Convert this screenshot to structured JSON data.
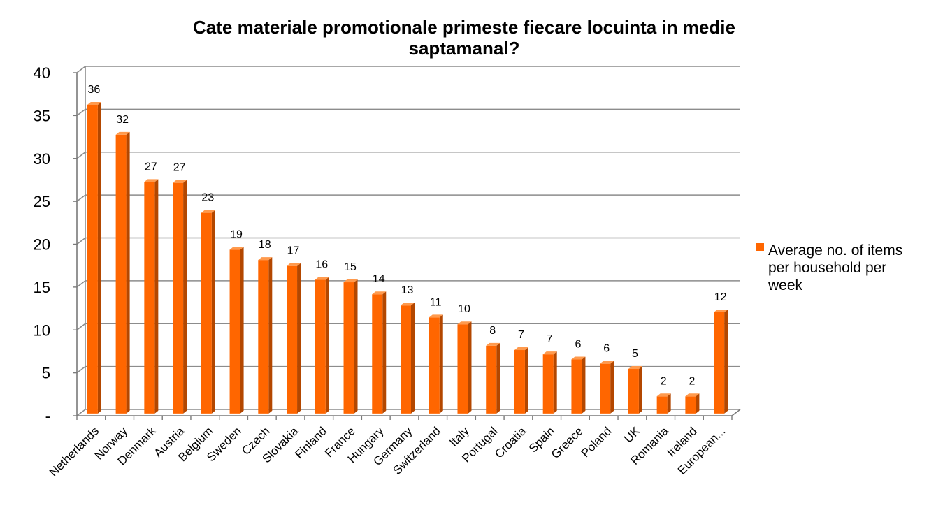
{
  "chart_data": {
    "type": "bar",
    "title_lines": [
      "Cate materiale promotionale primeste fiecare locuinta in medie",
      "saptamanal?"
    ],
    "categories": [
      "Netherlands",
      "Norway",
      "Denmark",
      "Austria",
      "Belgium",
      "Sweden",
      "Czech",
      "Slovakia",
      "Finland",
      "France",
      "Hungary",
      "Germany",
      "Switzerland",
      "Italy",
      "Portugal",
      "Croatia",
      "Spain",
      "Greece",
      "Poland",
      "UK",
      "Romania",
      "Ireland",
      "European..."
    ],
    "series": [
      {
        "name": "Average no. of items per household per week",
        "legend_lines": [
          "Average no. of items",
          "per household per",
          "week"
        ],
        "color": "#FF6600",
        "values": [
          36,
          32.5,
          27,
          26.9,
          23.4,
          19.1,
          17.9,
          17.2,
          15.6,
          15.3,
          13.9,
          12.6,
          11.2,
          10.4,
          7.9,
          7.4,
          6.9,
          6.3,
          5.8,
          5.2,
          2.0,
          2.0,
          11.8
        ],
        "data_labels": [
          "36",
          "32",
          "27",
          "27",
          "23",
          "19",
          "18",
          "17",
          "16",
          "15",
          "14",
          "13",
          "11",
          "10",
          "8",
          "7",
          "7",
          "6",
          "6",
          "5",
          "2",
          "2",
          "12"
        ]
      }
    ],
    "ylim": [
      0,
      40
    ],
    "yticks": [
      0,
      5,
      10,
      15,
      20,
      25,
      30,
      35,
      40
    ],
    "ytick_labels": [
      "-",
      "5",
      "10",
      "15",
      "20",
      "25",
      "30",
      "35",
      "40"
    ],
    "xlabel": "",
    "ylabel": "",
    "grid": true,
    "legend": "right"
  }
}
